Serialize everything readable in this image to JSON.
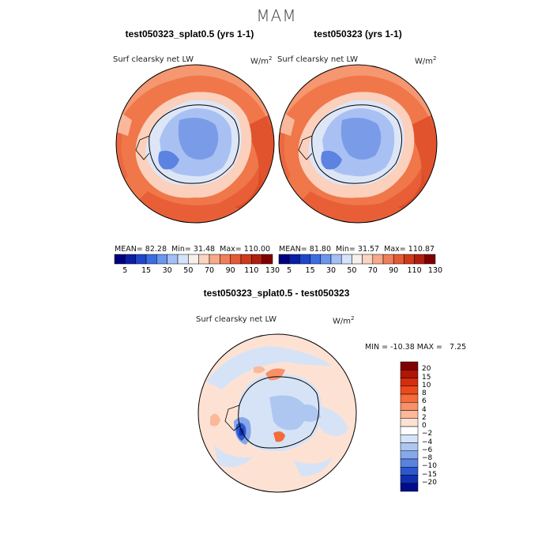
{
  "title": "MAM",
  "panels": [
    {
      "case_title": "test050323_splat0.5 (yrs 1-1)",
      "variable": "Surf clearsky net LW",
      "units": "W/m",
      "units_sup": "2",
      "stats": {
        "mean_label": "MEAN=",
        "mean": "82.28",
        "min_label": "Min=",
        "min": "31.48",
        "max_label": "Max=",
        "max": "110.00"
      }
    },
    {
      "case_title": "test050323 (yrs 1-1)",
      "variable": "Surf clearsky net LW",
      "units": "W/m",
      "units_sup": "2",
      "stats": {
        "mean_label": "MEAN=",
        "mean": "81.80",
        "min_label": "Min=",
        "min": "31.57",
        "max_label": "Max=",
        "max": "110.87"
      }
    }
  ],
  "colorbar_main": {
    "labels": [
      "5",
      "15",
      "30",
      "50",
      "70",
      "90",
      "110",
      "130"
    ],
    "colors": [
      "#00007f",
      "#0a1fa3",
      "#1f45c9",
      "#3a6de0",
      "#6b95ee",
      "#a3bff5",
      "#d4e2fa",
      "#f5f0ec",
      "#fbd5c2",
      "#f7a98a",
      "#f07e5a",
      "#e45a34",
      "#d03a1b",
      "#b01f0e",
      "#7f0000"
    ]
  },
  "difference": {
    "title": "test050323_splat0.5 - test050323",
    "variable": "Surf clearsky net LW",
    "units": "W/m",
    "units_sup": "2",
    "min_label": "MIN =",
    "min": "-10.38",
    "max_label": "MAX =",
    "max": "7.25"
  },
  "colorbar_diff": {
    "labels": [
      "20",
      "15",
      "10",
      "8",
      "6",
      "4",
      "2",
      "0",
      "−2",
      "−4",
      "−6",
      "−8",
      "−10",
      "−15",
      "−20"
    ],
    "colors": [
      "#7f0000",
      "#b01505",
      "#d42d10",
      "#ec4a1c",
      "#f56b3a",
      "#f8906a",
      "#fbb99a",
      "#fde2d4",
      "#ffffff",
      "#d6e3f7",
      "#adc7f0",
      "#86a8ea",
      "#5a83e0",
      "#2e57cf",
      "#1030b0",
      "#000c8a"
    ]
  }
}
